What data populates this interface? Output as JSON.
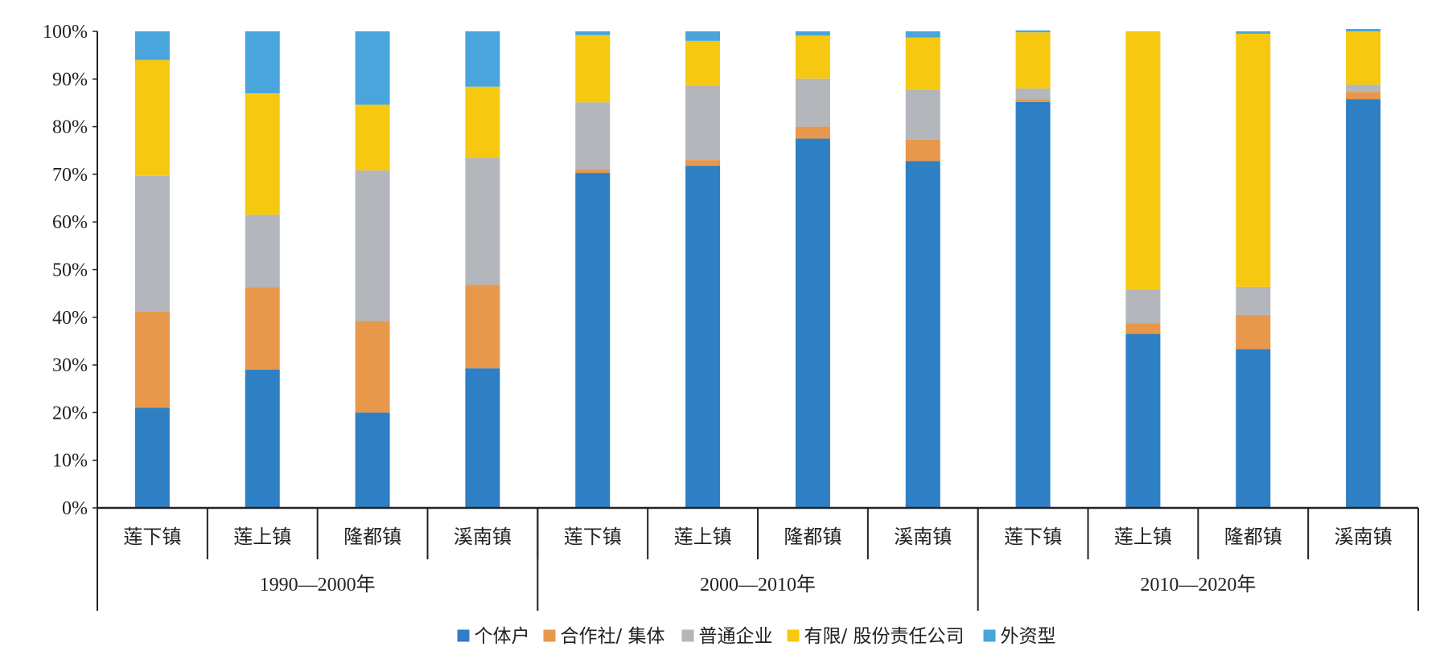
{
  "chart_data": {
    "type": "bar",
    "stacked": true,
    "ylim": [
      0,
      100
    ],
    "y_ticks": [
      "0%",
      "10%",
      "20%",
      "30%",
      "40%",
      "50%",
      "60%",
      "70%",
      "80%",
      "90%",
      "100%"
    ],
    "categories": [
      "莲下镇",
      "莲上镇",
      "隆都镇",
      "溪南镇",
      "莲下镇",
      "莲上镇",
      "隆都镇",
      "溪南镇",
      "莲下镇",
      "莲上镇",
      "隆都镇",
      "溪南镇"
    ],
    "groups": [
      {
        "label": "1990—2000年",
        "count": 4
      },
      {
        "label": "2000—2010年",
        "count": 4
      },
      {
        "label": "2010—2020年",
        "count": 4
      }
    ],
    "series": [
      {
        "name": "个体户",
        "color": "#2e7fc4",
        "values": [
          21,
          29,
          20,
          29.3,
          70.3,
          71.8,
          77.5,
          72.8,
          85.2,
          36.5,
          33.3,
          85.8
        ]
      },
      {
        "name": "合作社/ 集体",
        "color": "#e8984a",
        "values": [
          20.2,
          17.3,
          19.2,
          17.5,
          0.7,
          1.2,
          2.5,
          4.5,
          0.6,
          2.2,
          7.2,
          1.5
        ]
      },
      {
        "name": "普通企业",
        "color": "#b3b6bb",
        "values": [
          28.5,
          15.2,
          31.6,
          26.7,
          14.1,
          15.6,
          10.1,
          10.4,
          2.2,
          7.1,
          5.9,
          1.5
        ]
      },
      {
        "name": "有限/ 股份责任公司",
        "color": "#f6c910",
        "values": [
          24.3,
          25.5,
          13.8,
          14.9,
          14.1,
          9.4,
          9.0,
          11.0,
          11.8,
          54.2,
          53.1,
          11.2
        ]
      },
      {
        "name": "外资型",
        "color": "#49a5dc",
        "values": [
          6.0,
          13.0,
          15.4,
          11.6,
          0.8,
          2.0,
          0.9,
          1.3,
          0.4,
          0,
          0.5,
          0.5
        ]
      }
    ],
    "legend_position": "bottom",
    "grid": false
  }
}
